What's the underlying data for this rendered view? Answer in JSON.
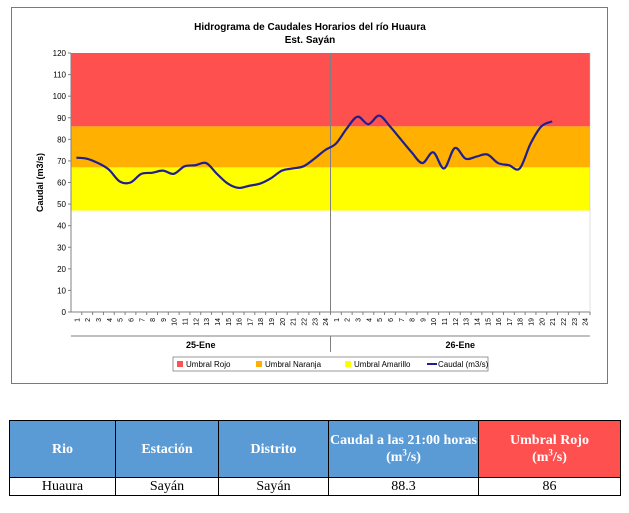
{
  "chart_data": {
    "type": "line",
    "title": "Hidrograma de Caudales Horarios del río Huaura",
    "subtitle": "Est. Sayán",
    "ylabel": "Caudal  (m3/s)",
    "ylim": [
      0,
      120
    ],
    "yticks": [
      0,
      10,
      20,
      30,
      40,
      50,
      60,
      70,
      80,
      90,
      100,
      110,
      120
    ],
    "x_tick_labels": [
      "1",
      "2",
      "3",
      "4",
      "5",
      "6",
      "7",
      "8",
      "9",
      "10",
      "11",
      "12",
      "13",
      "14",
      "15",
      "16",
      "17",
      "18",
      "19",
      "20",
      "21",
      "22",
      "23",
      "24",
      "1",
      "2",
      "3",
      "4",
      "5",
      "6",
      "7",
      "8",
      "9",
      "10",
      "11",
      "12",
      "13",
      "14",
      "15",
      "16",
      "17",
      "18",
      "19",
      "20",
      "21",
      "22",
      "23",
      "24"
    ],
    "day_labels": [
      "25-Ene",
      "26-Ene"
    ],
    "thresholds": [
      {
        "name": "Umbral Rojo",
        "from": 86,
        "to": 120,
        "color": "#ff5050"
      },
      {
        "name": "Umbral Naranja",
        "from": 67,
        "to": 86,
        "color": "#ffb000"
      },
      {
        "name": "Umbral Amarillo",
        "from": 47,
        "to": 67,
        "color": "#ffff00"
      }
    ],
    "series": [
      {
        "name": "Caudal (m3/s)",
        "color": "#1f1f8f",
        "x": [
          1,
          2,
          3,
          4,
          5,
          6,
          7,
          8,
          9,
          10,
          11,
          12,
          13,
          14,
          15,
          16,
          17,
          18,
          19,
          20,
          21,
          22,
          23,
          24,
          25,
          26,
          27,
          28,
          29,
          30,
          31,
          32,
          33,
          34,
          35,
          36,
          37,
          38,
          39,
          40,
          41,
          42,
          43,
          44,
          45
        ],
        "values": [
          71.5,
          71,
          69,
          66,
          60.5,
          60,
          64,
          64.5,
          65.5,
          64,
          67.5,
          68,
          69,
          64,
          59.5,
          57.5,
          58.5,
          59.5,
          62,
          65.5,
          66.5,
          67.5,
          71,
          75,
          78,
          85,
          90.5,
          87,
          91,
          86,
          80,
          74,
          69,
          74,
          66.5,
          76,
          71,
          72,
          73,
          69,
          68,
          66.5,
          78,
          86,
          88.3
        ]
      }
    ],
    "legend": [
      "Umbral Rojo",
      "Umbral Naranja",
      "Umbral Amarillo",
      "Caudal (m3/s)"
    ],
    "legend_position": "bottom"
  },
  "table": {
    "headers": {
      "rio": "Rio",
      "estacion": "Estación",
      "distrito": "Distrito",
      "caudal_main": "Caudal a las 21:00 horas",
      "caudal_unit": "(m",
      "caudal_unit_sup": "3",
      "caudal_unit_end": "/s)",
      "umbral_main": "Umbral Rojo",
      "umbral_unit": "(m",
      "umbral_unit_sup": "3",
      "umbral_unit_end": "/s)"
    },
    "row": {
      "rio": "Huaura",
      "estacion": "Sayán",
      "distrito": "Sayán",
      "caudal": "88.3",
      "umbral": "86"
    }
  }
}
